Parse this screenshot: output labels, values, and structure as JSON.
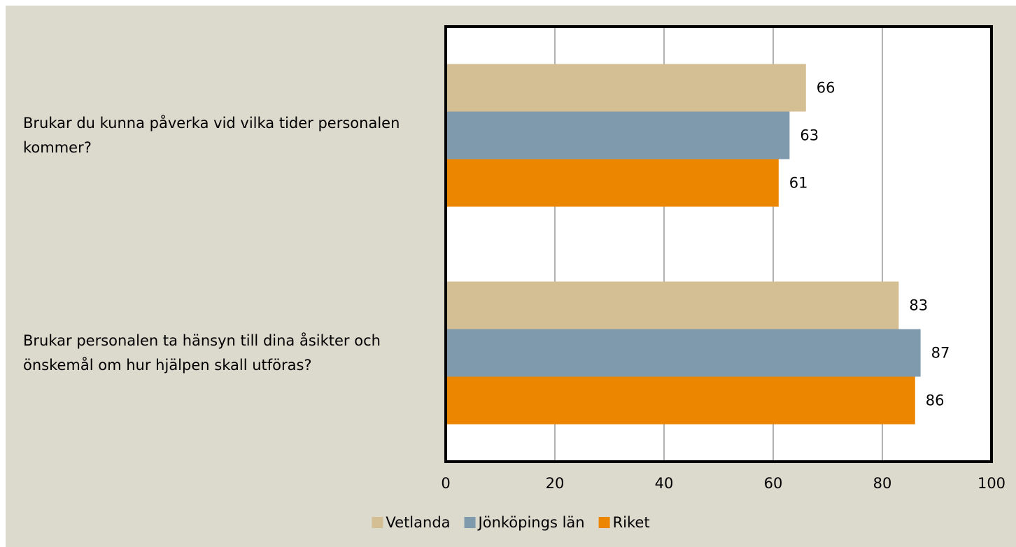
{
  "chart_data": {
    "type": "barh",
    "categories": [
      "Brukar du kunna påverka vid vilka tider personalen kommer?",
      "Brukar personalen ta hänsyn till dina åsikter och önskemål om hur hjälpen skall utföras?"
    ],
    "series": [
      {
        "name": "Vetlanda",
        "color": "#d4bf95",
        "values": [
          66,
          83
        ]
      },
      {
        "name": "Jönköpings län",
        "color": "#7f9aad",
        "values": [
          63,
          87
        ]
      },
      {
        "name": "Riket",
        "color": "#ec8500",
        "values": [
          61,
          86
        ]
      }
    ],
    "xlim": [
      0,
      100
    ],
    "xticks": [
      0,
      20,
      40,
      60,
      80,
      100
    ],
    "grid": true,
    "legend": "bottom"
  }
}
